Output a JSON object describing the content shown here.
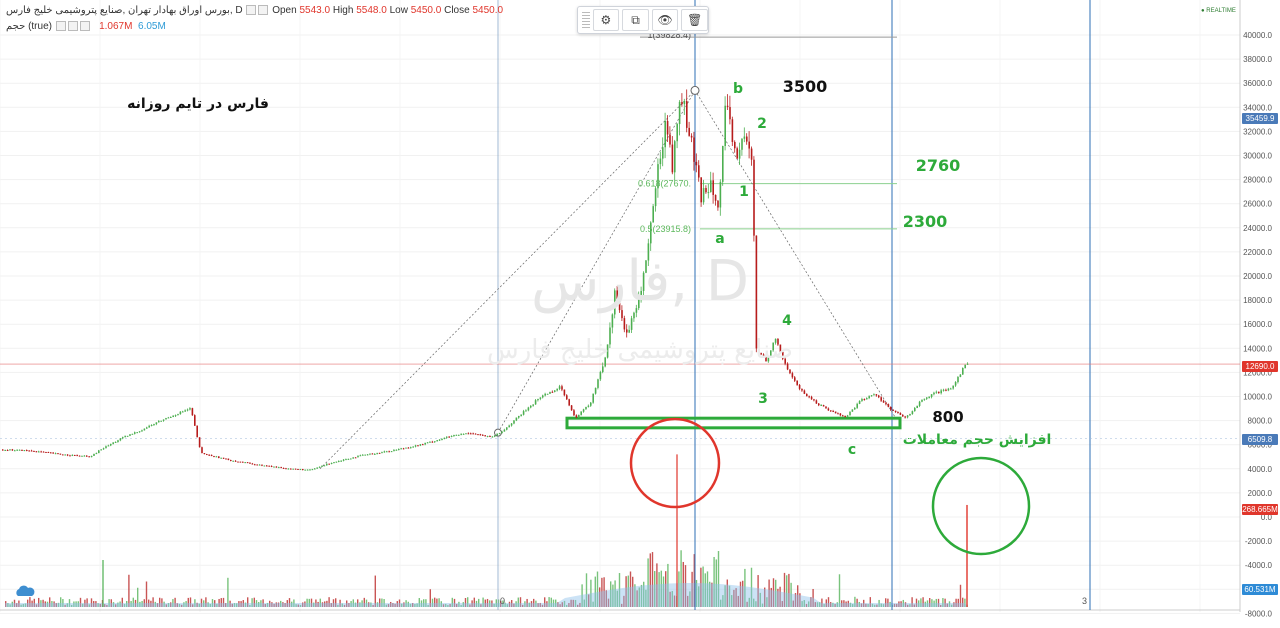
{
  "header": {
    "symbol_title": "بورس اوراق بهادار تهران ,صنایع پتروشیمی خلیج فارس, D",
    "open_label": "Open",
    "open": "5543.0",
    "high_label": "High",
    "high": "5548.0",
    "low_label": "Low",
    "low": "5450.0",
    "close_label": "Close",
    "close": "5450.0",
    "volume_label": "حجم (true)",
    "volume_value": "1.067M",
    "volume_ma": "6.05M"
  },
  "toolbar": {
    "settings_icon": "⚙",
    "clone_icon": "⧉",
    "visibility_icon": "👁",
    "delete_icon": "🗑"
  },
  "realtime_label": "● REALTIME",
  "watermark": {
    "symbol": "فارس, D",
    "name": "صنایع پتروشیمی خلیج فارس"
  },
  "annotations": {
    "title": "فارس در تایم روزانه",
    "label_3500": "3500",
    "label_b": "b",
    "label_2": "2",
    "label_2760": "2760",
    "label_1": "1",
    "label_2300": "2300",
    "label_a": "a",
    "label_4": "4",
    "label_3": "3",
    "label_800": "800",
    "label_c": "c",
    "volume_note": "افزایش حجم معاملات"
  },
  "fib_labels": {
    "top": "1(39828.4)",
    "l618": "0.618(27670.",
    "l5": "0.5(23915.8)"
  },
  "price_badges": {
    "peak": "35459.9",
    "current": "12690.0",
    "support": "6509.8",
    "vol_red": "268.665M",
    "vol_blue": "60.531M"
  },
  "axis_bottom_labels": {
    "left": "0",
    "right": "3"
  },
  "colors": {
    "up": "#4caf50",
    "down": "#b71c1c",
    "green_annotation": "#2daa3a",
    "red_circle": "#e0362c",
    "blue_line": "#2e6fb5",
    "volume_area": "#8fc2ea"
  },
  "chart_data": {
    "type": "line",
    "ylabel": "",
    "yticks": [
      -8000,
      -6000,
      -4000,
      -2000,
      0,
      2000,
      4000,
      6000,
      8000,
      10000,
      12000,
      14000,
      16000,
      18000,
      20000,
      22000,
      24000,
      26000,
      28000,
      30000,
      32000,
      34000,
      36000,
      38000,
      40000
    ],
    "ylim": [
      -8800,
      42000
    ],
    "series": [
      {
        "name": "فارس",
        "x_index": [
          0,
          30,
          60,
          90,
          100,
          120,
          140,
          160,
          180,
          190,
          200,
          215,
          230,
          260,
          290,
          310,
          330,
          360,
          390,
          420,
          450,
          470,
          490,
          500,
          520,
          540,
          560,
          575,
          590,
          605,
          615,
          625,
          635,
          645,
          655,
          665,
          672,
          680,
          688,
          695,
          700,
          710,
          718,
          725,
          735,
          745,
          752,
          755,
          765,
          775,
          785,
          800,
          815,
          830,
          845,
          860,
          875,
          890,
          905,
          920,
          935,
          950,
          965
        ],
        "close": [
          5600,
          5500,
          5200,
          5000,
          5600,
          6500,
          7200,
          8000,
          8700,
          9000,
          5300,
          5000,
          4700,
          4300,
          4000,
          3900,
          4500,
          5100,
          5500,
          6000,
          6700,
          7000,
          6600,
          7000,
          8500,
          10000,
          10800,
          8200,
          9500,
          13500,
          19000,
          15000,
          17000,
          21000,
          27500,
          33000,
          29000,
          35400,
          32000,
          29000,
          26500,
          28000,
          26000,
          34000,
          30000,
          31500,
          29000,
          14000,
          13000,
          14800,
          12500,
          10500,
          9500,
          8800,
          8300,
          9700,
          10200,
          8900,
          8200,
          9600,
          10300,
          10600,
          12690
        ]
      }
    ],
    "volume": {
      "spike_red_x": 677,
      "spike_red": 5200,
      "spike_green_x": 967,
      "spike_green": 1000,
      "base_levels": "small"
    },
    "fibonacci": [
      {
        "level": "1",
        "price": 39828.4
      },
      {
        "level": "0.618",
        "price": 27670
      },
      {
        "level": "0.5",
        "price": 23915.8
      }
    ],
    "support_box_price": [
      7400,
      8200
    ],
    "current_price": 12690
  }
}
